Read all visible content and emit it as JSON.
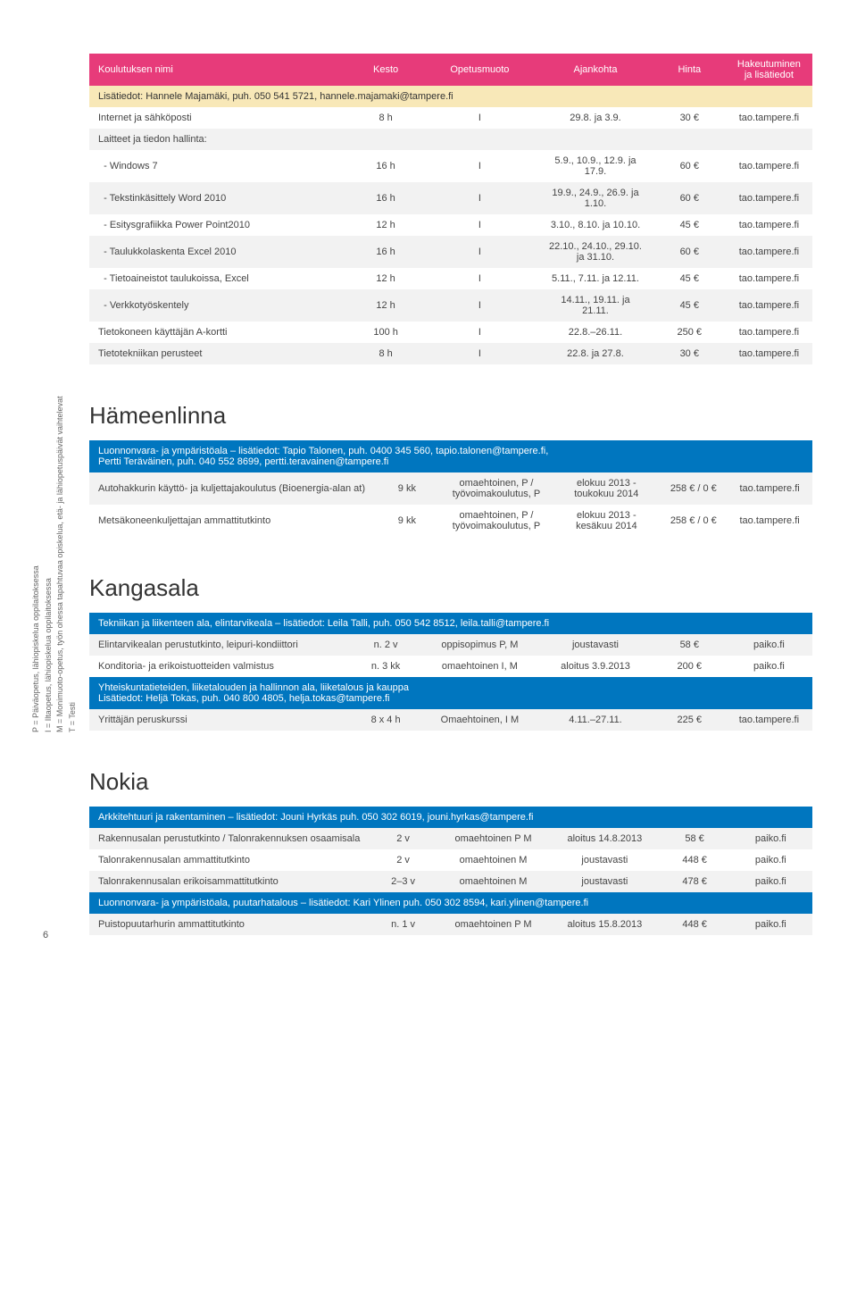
{
  "page_number": "6",
  "sidebar_legend": "P = Päiväopetus, lähiopiskelua oppilaitoksessa\nI = Iltaopetus, lähiopiskelua oppilaitoksessa\nM = Monimuoto-opetus, työn ohessa tapahtuvaa opiskelua, etä- ja lähiopetuspäivät vaihtelevat\nT = Testi",
  "table1": {
    "headers": [
      "Koulutuksen nimi",
      "Kesto",
      "Opetusmuoto",
      "Ajankohta",
      "Hinta",
      "Hakeutuminen ja lisätiedot"
    ],
    "note": "Lisätiedot: Hannele Majamäki, puh. 050 541 5721, hannele.majamaki@tampere.fi",
    "section_header": "Laitteet ja tiedon hallinta:",
    "rows": [
      {
        "n": "Internet ja sähköposti",
        "d": "8 h",
        "m": "I",
        "t": "29.8. ja 3.9.",
        "p": "30 €",
        "i": "tao.tampere.fi",
        "cls": "white"
      },
      {
        "n": "  - Windows 7",
        "d": "16 h",
        "m": "I",
        "t": "5.9., 10.9., 12.9. ja 17.9.",
        "p": "60 €",
        "i": "tao.tampere.fi",
        "cls": "white"
      },
      {
        "n": "  - Tekstinkäsittely Word 2010",
        "d": "16 h",
        "m": "I",
        "t": "19.9., 24.9., 26.9. ja 1.10.",
        "p": "60 €",
        "i": "tao.tampere.fi",
        "cls": "grey"
      },
      {
        "n": "  - Esitysgrafiikka Power Point2010",
        "d": "12 h",
        "m": "I",
        "t": "3.10., 8.10. ja 10.10.",
        "p": "45 €",
        "i": "tao.tampere.fi",
        "cls": "white"
      },
      {
        "n": "  - Taulukkolaskenta Excel 2010",
        "d": "16 h",
        "m": "I",
        "t": "22.10., 24.10., 29.10. ja 31.10.",
        "p": "60 €",
        "i": "tao.tampere.fi",
        "cls": "grey"
      },
      {
        "n": "  - Tietoaineistot taulukoissa, Excel",
        "d": "12 h",
        "m": "I",
        "t": "5.11., 7.11. ja 12.11.",
        "p": "45 €",
        "i": "tao.tampere.fi",
        "cls": "white"
      },
      {
        "n": "  - Verkkotyöskentely",
        "d": "12 h",
        "m": "I",
        "t": "14.11., 19.11. ja 21.11.",
        "p": "45 €",
        "i": "tao.tampere.fi",
        "cls": "grey"
      },
      {
        "n": "Tietokoneen käyttäjän A-kortti",
        "d": "100 h",
        "m": "I",
        "t": "22.8.–26.11.",
        "p": "250 €",
        "i": "tao.tampere.fi",
        "cls": "white"
      },
      {
        "n": "Tietotekniikan perusteet",
        "d": "8 h",
        "m": "I",
        "t": "22.8. ja 27.8.",
        "p": "30 €",
        "i": "tao.tampere.fi",
        "cls": "grey"
      }
    ]
  },
  "sections": [
    {
      "title": "Hämeenlinna",
      "blue": "Luonnonvara- ja ympäristöala – lisätiedot: Tapio Talonen, puh. 0400 345 560, tapio.talonen@tampere.fi,\nPertti Teräväinen, puh. 040 552 8699, pertti.teravainen@tampere.fi",
      "rows": [
        {
          "n": "Autohakkurin käyttö- ja kuljettajakoulutus (Bioenergia-alan at)",
          "d": "9 kk",
          "m": "omaehtoinen, P / työvoimakoulutus, P",
          "t": "elokuu 2013 - toukokuu 2014",
          "p": "258 € / 0 €",
          "i": "tao.tampere.fi",
          "cls": "grey"
        },
        {
          "n": "Metsäkoneenkuljettajan ammattitutkinto",
          "d": "9 kk",
          "m": "omaehtoinen, P / työvoimakoulutus, P",
          "t": "elokuu 2013 - kesäkuu 2014",
          "p": "258 € / 0 €",
          "i": "tao.tampere.fi",
          "cls": "white"
        }
      ]
    },
    {
      "title": "Kangasala",
      "blue": "Tekniikan ja liikenteen ala, elintarvikeala – lisätiedot: Leila Talli, puh. 050 542 8512, leila.talli@tampere.fi",
      "rows": [
        {
          "n": "Elintarvikealan perustutkinto, leipuri-kondiittori",
          "d": "n. 2 v",
          "m": "oppisopimus P, M",
          "t": "joustavasti",
          "p": "58 €",
          "i": "paiko.fi",
          "cls": "grey"
        },
        {
          "n": "Konditoria- ja erikoistuotteiden valmistus",
          "d": "n. 3 kk",
          "m": "omaehtoinen I, M",
          "t": "aloitus 3.9.2013",
          "p": "200 €",
          "i": "paiko.fi",
          "cls": "white"
        }
      ],
      "blue2": "Yhteiskuntatieteiden, liiketalouden ja hallinnon ala, liiketalous ja kauppa\nLisätiedot: Heljä Tokas, puh. 040 800 4805, helja.tokas@tampere.fi",
      "rows2": [
        {
          "n": "Yrittäjän peruskurssi",
          "d": "8 x 4 h",
          "m": "Omaehtoinen, I M",
          "t": "4.11.–27.11.",
          "p": "225 €",
          "i": "tao.tampere.fi",
          "cls": "grey"
        }
      ]
    },
    {
      "title": "Nokia",
      "blue": "Arkkitehtuuri ja rakentaminen – lisätiedot: Jouni Hyrkäs puh. 050 302 6019, jouni.hyrkas@tampere.fi",
      "rows": [
        {
          "n": "Rakennusalan perustutkinto / Talonrakennuksen osaamisala",
          "d": "2 v",
          "m": "omaehtoinen P M",
          "t": "aloitus 14.8.2013",
          "p": "58 €",
          "i": "paiko.fi",
          "cls": "grey"
        },
        {
          "n": "Talonrakennusalan ammattitutkinto",
          "d": "2 v",
          "m": "omaehtoinen M",
          "t": "joustavasti",
          "p": "448 €",
          "i": "paiko.fi",
          "cls": "white"
        },
        {
          "n": "Talonrakennusalan erikoisammattitutkinto",
          "d": "2–3 v",
          "m": "omaehtoinen M",
          "t": "joustavasti",
          "p": "478 €",
          "i": "paiko.fi",
          "cls": "grey"
        }
      ],
      "blue2": "Luonnonvara- ja ympäristöala, puutarhatalous – lisätiedot: Kari Ylinen puh. 050 302 8594, kari.ylinen@tampere.fi",
      "rows2": [
        {
          "n": "Puistopuutarhurin ammattitutkinto",
          "d": "n. 1 v",
          "m": "omaehtoinen P M",
          "t": "aloitus 15.8.2013",
          "p": "448 €",
          "i": "paiko.fi",
          "cls": "grey"
        }
      ]
    }
  ]
}
